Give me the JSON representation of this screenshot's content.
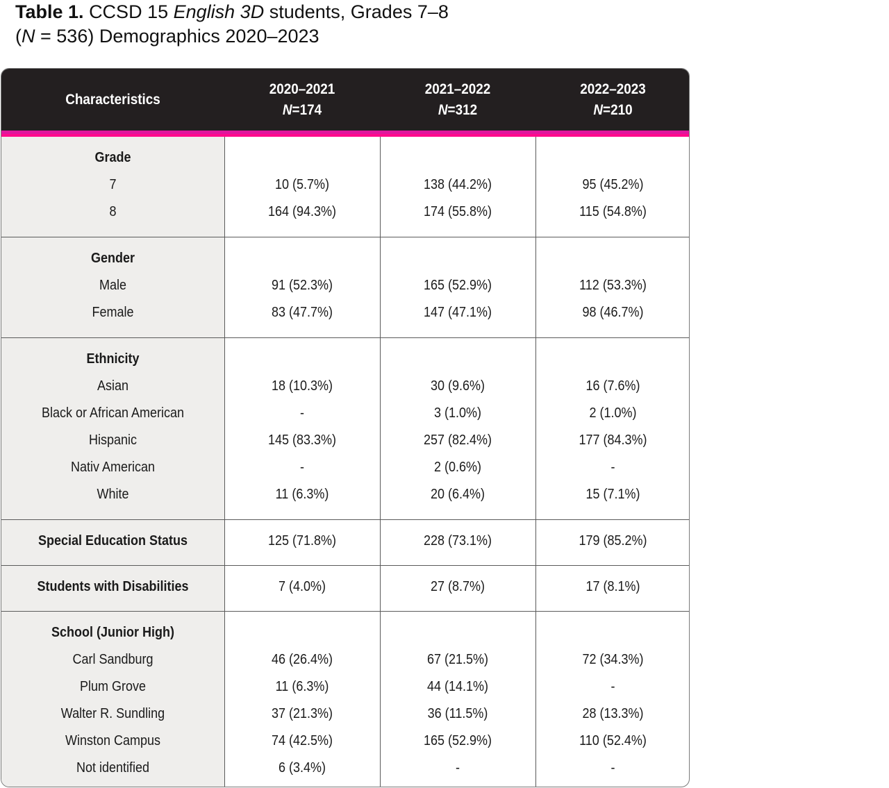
{
  "title": {
    "label": "Table 1.",
    "text_a": "CCSD 15",
    "text_italic": "English 3D",
    "text_b": "students, Grades 7–8",
    "line2_open": "(",
    "line2_italic": "N",
    "line2_rest": "= 536) Demographics 2020–2023"
  },
  "header": {
    "characteristics": "Characteristics",
    "columns": [
      {
        "year": "2020–2021",
        "n_label": "N",
        "n_value": "=174"
      },
      {
        "year": "2021–2022",
        "n_label": "N",
        "n_value": "=312"
      },
      {
        "year": "2022–2023",
        "n_label": "N",
        "n_value": "=210"
      }
    ]
  },
  "sections": [
    {
      "heading": "Grade",
      "rows": [
        {
          "label": "7",
          "values": [
            "10 (5.7%)",
            "138 (44.2%)",
            "95 (45.2%)"
          ]
        },
        {
          "label": "8",
          "values": [
            "164 (94.3%)",
            "174 (55.8%)",
            "115 (54.8%)"
          ]
        }
      ]
    },
    {
      "heading": "Gender",
      "rows": [
        {
          "label": "Male",
          "values": [
            "91 (52.3%)",
            "165 (52.9%)",
            "112 (53.3%)"
          ]
        },
        {
          "label": "Female",
          "values": [
            "83 (47.7%)",
            "147 (47.1%)",
            "98 (46.7%)"
          ]
        }
      ]
    },
    {
      "heading": "Ethnicity",
      "rows": [
        {
          "label": "Asian",
          "values": [
            "18 (10.3%)",
            "30 (9.6%)",
            "16 (7.6%)"
          ]
        },
        {
          "label": "Black or African American",
          "values": [
            "-",
            "3 (1.0%)",
            "2 (1.0%)"
          ]
        },
        {
          "label": "Hispanic",
          "values": [
            "145 (83.3%)",
            "257 (82.4%)",
            "177 (84.3%)"
          ]
        },
        {
          "label": "Nativ American",
          "values": [
            "-",
            "2 (0.6%)",
            "-"
          ]
        },
        {
          "label": "White",
          "values": [
            "11 (6.3%)",
            "20 (6.4%)",
            "15 (7.1%)"
          ]
        }
      ]
    },
    {
      "heading": "Special Education Status",
      "values": [
        "125 (71.8%)",
        "228 (73.1%)",
        "179 (85.2%)"
      ]
    },
    {
      "heading": "Students with Disabilities",
      "values": [
        "7 (4.0%)",
        "27 (8.7%)",
        "17 (8.1%)"
      ]
    },
    {
      "heading": "School (Junior High)",
      "rows": [
        {
          "label": "Carl Sandburg",
          "values": [
            "46 (26.4%)",
            "67 (21.5%)",
            "72 (34.3%)"
          ]
        },
        {
          "label": "Plum Grove",
          "values": [
            "11 (6.3%)",
            "44 (14.1%)",
            "-"
          ]
        },
        {
          "label": "Walter R. Sundling",
          "values": [
            "37 (21.3%)",
            "36 (11.5%)",
            "28 (13.3%)"
          ]
        },
        {
          "label": "Winston Campus",
          "values": [
            "74 (42.5%)",
            "165 (52.9%)",
            "110 (52.4%)"
          ]
        },
        {
          "label": "Not identified",
          "values": [
            "6 (3.4%)",
            "-",
            "-"
          ]
        }
      ]
    }
  ],
  "colors": {
    "header_bg": "#231f20",
    "accent": "#ff0a8c",
    "label_column_bg": "#efeeec"
  }
}
